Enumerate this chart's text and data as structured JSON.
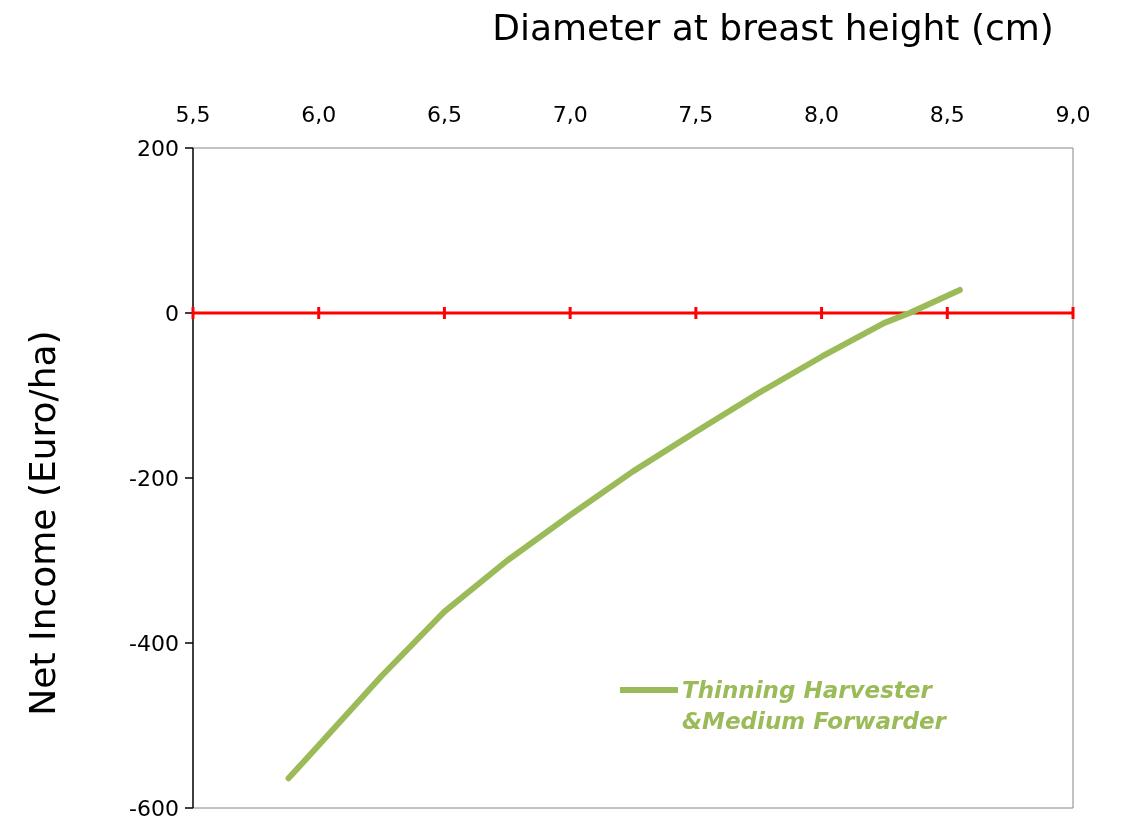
{
  "chart_data": {
    "type": "line",
    "xlabel": "Diameter at breast height (cm)",
    "ylabel": "Net Income (Euro/ha)",
    "series": [
      {
        "name": "Thinning Harvester &Medium Forwarder",
        "color": "#9bbb59",
        "x": [
          5.88,
          6.0,
          6.25,
          6.5,
          6.75,
          7.0,
          7.25,
          7.5,
          7.75,
          8.0,
          8.25,
          8.35,
          8.55
        ],
        "values": [
          -564,
          -524,
          -440,
          -362,
          -300,
          -245,
          -192,
          -144,
          -97,
          -53,
          -12,
          0,
          28
        ]
      }
    ],
    "xlim": [
      5.5,
      9.0
    ],
    "ylim": [
      -600,
      200
    ],
    "xticks": [
      {
        "value": 5.5,
        "label": "5,5"
      },
      {
        "value": 6.0,
        "label": "6,0"
      },
      {
        "value": 6.5,
        "label": "6,5"
      },
      {
        "value": 7.0,
        "label": "7,0"
      },
      {
        "value": 7.5,
        "label": "7,5"
      },
      {
        "value": 8.0,
        "label": "8,0"
      },
      {
        "value": 8.5,
        "label": "8,5"
      },
      {
        "value": 9.0,
        "label": "9,0"
      }
    ],
    "yticks": [
      -600,
      -400,
      -200,
      0,
      200
    ],
    "ref_lines": [
      {
        "axis": "y",
        "value": 0,
        "color": "#ff0000"
      }
    ],
    "legend": "bottom right",
    "marker": "none",
    "line_style": "solid",
    "grid": false
  }
}
